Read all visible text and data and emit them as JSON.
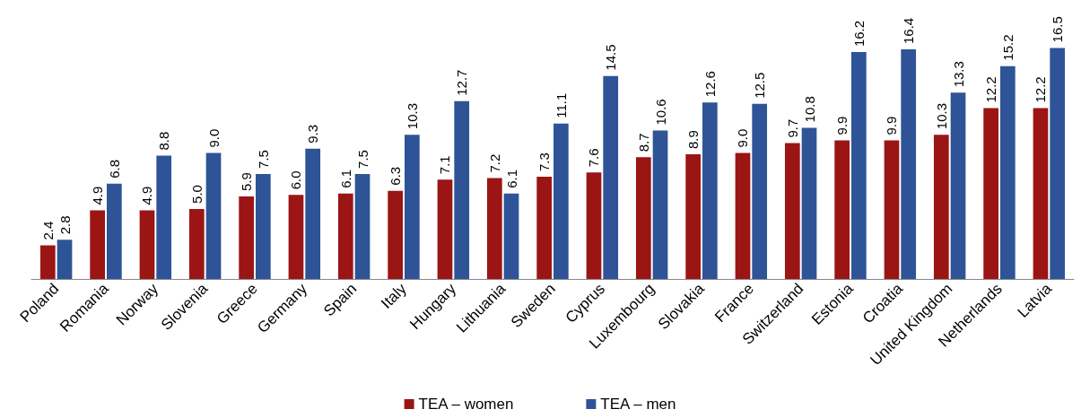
{
  "chart_data": {
    "type": "bar",
    "categories": [
      "Poland",
      "Romania",
      "Norway",
      "Slovenia",
      "Greece",
      "Germany",
      "Spain",
      "Italy",
      "Hungary",
      "Lithuania",
      "Sweden",
      "Cyprus",
      "Luxembourg",
      "Slovakia",
      "France",
      "Switzerland",
      "Estonia",
      "Croatia",
      "United Kingdom",
      "Netherlands",
      "Latvia"
    ],
    "series": [
      {
        "name": "TEA – women",
        "color": "#9b1515",
        "values": [
          2.4,
          4.9,
          4.9,
          5.0,
          5.9,
          6.0,
          6.1,
          6.3,
          7.1,
          7.2,
          7.3,
          7.6,
          8.7,
          8.9,
          9.0,
          9.7,
          9.9,
          9.9,
          10.3,
          12.2,
          12.2
        ],
        "value_labels": [
          "2.4",
          "4.9",
          "4.9",
          "5.0",
          "5.9",
          "6.0",
          "6.1",
          "6.3",
          "7.1",
          "7.2",
          "7.3",
          "7.6",
          "8.7",
          "8.9",
          "9.0",
          "9.7",
          "9.9",
          "9.9",
          "10.3",
          "12.2",
          "12.2"
        ]
      },
      {
        "name": "TEA – men",
        "color": "#2e5497",
        "values": [
          2.8,
          6.8,
          8.8,
          9.0,
          7.5,
          9.3,
          7.5,
          10.3,
          12.7,
          6.1,
          11.1,
          14.5,
          10.6,
          12.6,
          12.5,
          10.8,
          16.2,
          16.4,
          13.3,
          15.2,
          16.5
        ],
        "value_labels": [
          "2.8",
          "6.8",
          "8.8",
          "9.0",
          "7.5",
          "9.3",
          "7.5",
          "10.3",
          "12.7",
          "6.1",
          "11.1",
          "14.5",
          "10.6",
          "12.6",
          "12.5",
          "10.8",
          "16.2",
          "16.4",
          "13.3",
          "15.2",
          "16.5"
        ]
      }
    ],
    "legend": "bottom"
  }
}
